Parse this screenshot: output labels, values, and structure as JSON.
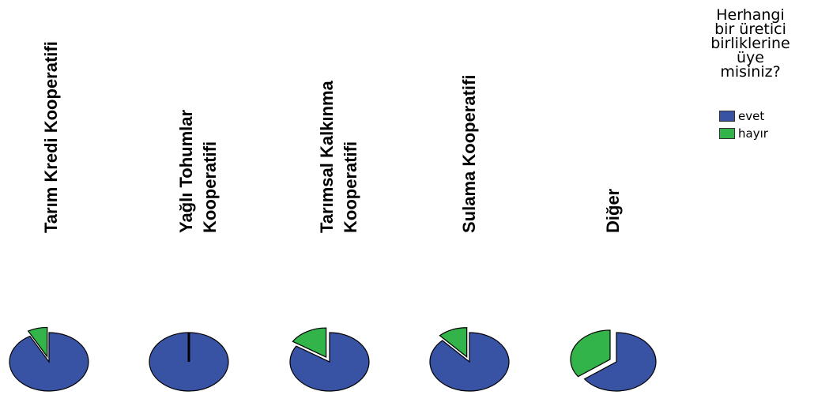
{
  "chart_data": {
    "type": "pie",
    "categories": [
      "Tarım Kredi Kooperatifi",
      "Yağlı Tohumlar Kooperatifi",
      "Tarımsal Kalkınma Kooperatifi",
      "Sulama Kooperatifi",
      "Diğer"
    ],
    "category_lines": [
      [
        "Tarım Kredi Kooperatifi"
      ],
      [
        "Yağlı Tohumlar",
        "Kooperatifi"
      ],
      [
        "Tarımsal Kalkınma",
        "Kooperatifi"
      ],
      [
        "Sulama Kooperatifi"
      ],
      [
        "Diğer"
      ]
    ],
    "series": [
      {
        "name": "evet",
        "color": "#3953a4",
        "values": [
          92,
          100,
          84,
          88,
          65
        ]
      },
      {
        "name": "hayır",
        "color": "#33b44a",
        "values": [
          8,
          0,
          16,
          12,
          35
        ]
      }
    ],
    "legend": {
      "title": "Herhangi bir üretici birliklerine üye misiniz?",
      "title_lines": [
        "Herhangi",
        "bir üretici",
        "birliklerine",
        "üye",
        "misiniz?"
      ],
      "placement": "top-right"
    }
  }
}
